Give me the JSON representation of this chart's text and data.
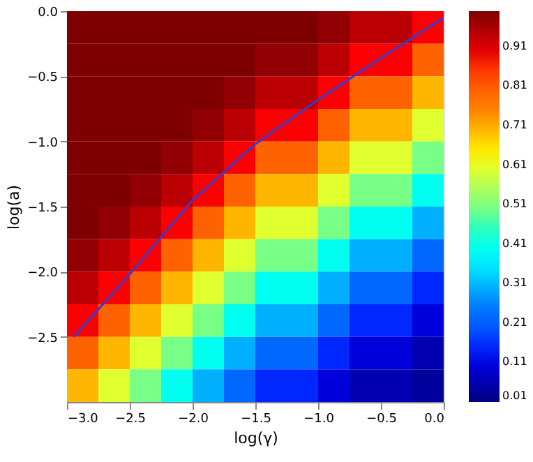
{
  "chart_data": {
    "type": "heatmap",
    "xlabel": "log(γ)",
    "ylabel": "log(a)",
    "xlim": [
      -3.0,
      0.0
    ],
    "ylim": [
      -3.0,
      0.0
    ],
    "xticks": [
      {
        "value": -3,
        "label": "−3.0"
      },
      {
        "value": -2.5,
        "label": "−2.5"
      },
      {
        "value": -2,
        "label": "−2.0"
      },
      {
        "value": -1.5,
        "label": "−1.5"
      },
      {
        "value": -1,
        "label": "−1.0"
      },
      {
        "value": -0.5,
        "label": "−0.5"
      },
      {
        "value": 0,
        "label": "0.0"
      }
    ],
    "yticks": [
      {
        "value": -2.5,
        "label": "−2.5"
      },
      {
        "value": -2,
        "label": "−2.0"
      },
      {
        "value": -1.5,
        "label": "−1.5"
      },
      {
        "value": -1,
        "label": "−1.0"
      },
      {
        "value": -0.5,
        "label": "−0.5"
      },
      {
        "value": 0,
        "label": "0.0"
      }
    ],
    "clim": [
      0.01,
      1.0
    ],
    "cticks": [
      0.01,
      0.11,
      0.21,
      0.31,
      0.41,
      0.51,
      0.61,
      0.71,
      0.81,
      0.91
    ],
    "cells": [
      [
        1,
        1,
        1,
        1,
        1,
        1,
        1,
        1,
        0.98,
        0.94,
        0.94,
        0.88
      ],
      [
        1,
        1,
        1,
        1,
        1,
        1,
        0.98,
        0.98,
        0.94,
        0.88,
        0.88,
        0.8
      ],
      [
        1,
        1,
        1,
        1,
        1,
        0.98,
        0.94,
        0.94,
        0.88,
        0.8,
        0.8,
        0.7
      ],
      [
        1,
        1,
        1,
        1,
        0.98,
        0.94,
        0.88,
        0.88,
        0.8,
        0.7,
        0.7,
        0.6
      ],
      [
        1,
        1,
        1,
        0.98,
        0.94,
        0.88,
        0.8,
        0.8,
        0.7,
        0.6,
        0.6,
        0.5
      ],
      [
        1,
        1,
        0.98,
        0.94,
        0.88,
        0.8,
        0.7,
        0.7,
        0.6,
        0.5,
        0.5,
        0.4
      ],
      [
        1,
        0.98,
        0.94,
        0.88,
        0.8,
        0.7,
        0.6,
        0.6,
        0.5,
        0.4,
        0.4,
        0.3
      ],
      [
        0.98,
        0.94,
        0.88,
        0.8,
        0.7,
        0.6,
        0.5,
        0.5,
        0.4,
        0.3,
        0.3,
        0.22
      ],
      [
        0.94,
        0.88,
        0.8,
        0.7,
        0.6,
        0.5,
        0.4,
        0.4,
        0.3,
        0.22,
        0.22,
        0.15
      ],
      [
        0.88,
        0.8,
        0.7,
        0.6,
        0.5,
        0.4,
        0.3,
        0.3,
        0.22,
        0.15,
        0.15,
        0.1
      ],
      [
        0.8,
        0.7,
        0.6,
        0.5,
        0.4,
        0.3,
        0.22,
        0.22,
        0.15,
        0.1,
        0.1,
        0.06
      ],
      [
        0.7,
        0.6,
        0.5,
        0.4,
        0.3,
        0.22,
        0.15,
        0.15,
        0.1,
        0.06,
        0.06,
        0.04
      ]
    ],
    "series": [
      {
        "type": "line",
        "color": "#3a3acc",
        "x": [
          -2.95,
          -2.9,
          -2.5,
          -2.0,
          -1.5,
          -1.0,
          -0.5,
          0.0
        ],
        "values": [
          -2.5,
          -2.45,
          -2.02,
          -1.45,
          -1.02,
          -0.68,
          -0.36,
          -0.05
        ]
      }
    ]
  }
}
